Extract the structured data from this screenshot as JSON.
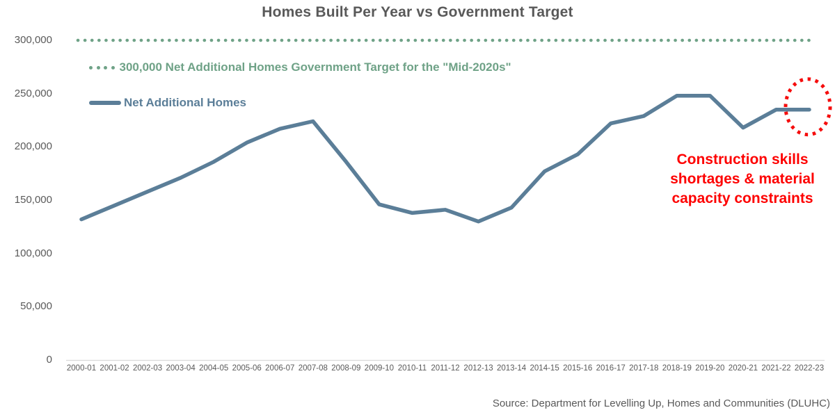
{
  "chart_data": {
    "type": "line",
    "title": "Homes Built Per Year vs Government Target",
    "categories": [
      "2000-01",
      "2001-02",
      "2002-03",
      "2003-04",
      "2004-05",
      "2005-06",
      "2006-07",
      "2007-08",
      "2008-09",
      "2009-10",
      "2010-11",
      "2011-12",
      "2012-13",
      "2013-14",
      "2014-15",
      "2015-16",
      "2016-17",
      "2017-18",
      "2018-19",
      "2019-20",
      "2020-21",
      "2021-22",
      "2022-23"
    ],
    "series": [
      {
        "name": "Net Additional Homes",
        "type": "line",
        "color": "#5b7e98",
        "values": [
          132000,
          145000,
          158000,
          171000,
          186000,
          204000,
          217000,
          224000,
          186000,
          146000,
          138000,
          141000,
          130000,
          143000,
          177000,
          193000,
          222000,
          229000,
          248000,
          248000,
          218000,
          235000,
          235000
        ]
      },
      {
        "name": "300,000 Net Additional Homes Government Target for the \"Mid-2020s\"",
        "type": "constant",
        "color": "#6fa287",
        "value": 300000
      }
    ],
    "ylim": [
      0,
      300000
    ],
    "yticks": [
      0,
      50000,
      100000,
      150000,
      200000,
      250000,
      300000
    ],
    "grid": false,
    "legend_position": "top-left",
    "highlight": {
      "point": "2022-23",
      "style": "red-dashed-circle",
      "color": "#f50d0d"
    }
  },
  "legend": {
    "target": {
      "label": "300,000 Net Additional Homes Government Target for the \"Mid-2020s\"",
      "color": "#6fa287"
    },
    "homes": {
      "label": "Net Additional Homes",
      "color": "#5b7e98"
    }
  },
  "annotation": {
    "text": "Construction skills\nshortages & material\ncapacity constraints",
    "color": "#fe0000"
  },
  "source": {
    "text": "Source: Department for Levelling Up, Homes and Communities (DLUHC)"
  }
}
